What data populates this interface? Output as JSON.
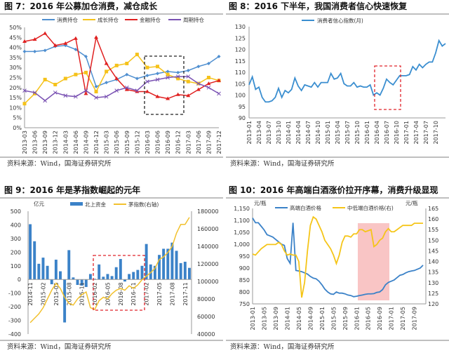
{
  "figures": [
    {
      "title": "图 7：2016 年公募加仓消费，减仓成长",
      "source": "资料来源：Wind，国海证券研究所"
    },
    {
      "title": "图 8：2016 下半年，我国消费者信心快速恢复",
      "source": "资料来源：Wind，国海证券研究所"
    },
    {
      "title": "图 9：2016 年是茅指数崛起的元年",
      "source": "资料来源：Wind，国海证券研究所",
      "unit_left": "亿元"
    },
    {
      "title": "图 10：2016 年高端白酒涨价拉开序幕，消费升级显现",
      "source": "资料来源：Wind，国海证券研究所",
      "unit_left": "元/瓶",
      "unit_right": "元/瓶"
    }
  ],
  "chart_data": [
    {
      "type": "line",
      "ylim": [
        0,
        50
      ],
      "yticks": [
        "0%",
        "5%",
        "10%",
        "15%",
        "20%",
        "25%",
        "30%",
        "35%",
        "40%",
        "45%",
        "50%"
      ],
      "legend": "top",
      "categories": [
        "2013-03",
        "2013-06",
        "2013-09",
        "2013-12",
        "2014-03",
        "2014-06",
        "2014-09",
        "2014-12",
        "2015-03",
        "2015-06",
        "2015-09",
        "2015-12",
        "2016-03",
        "2016-06",
        "2016-09",
        "2016-12",
        "2017-03",
        "2017-06",
        "2017-09",
        "2017-12"
      ],
      "series": [
        {
          "name": "消费持仓",
          "color": "#4f8fd0",
          "marker": "diamond",
          "values": [
            38,
            38,
            38.5,
            40.5,
            41,
            39,
            35.5,
            20.5,
            22.5,
            24,
            26.5,
            24.5,
            26,
            27,
            28,
            27.5,
            28.5,
            30.5,
            32,
            35.5
          ]
        },
        {
          "name": "成长持仓",
          "color": "#f5c21a",
          "marker": "square",
          "values": [
            12,
            17,
            24,
            21.5,
            24.5,
            26.5,
            27.5,
            18,
            28,
            31,
            32,
            36.5,
            30,
            30.5,
            26.5,
            24.5,
            23,
            22,
            25,
            23.5
          ]
        },
        {
          "name": "金融持仓",
          "color": "#e02020",
          "marker": "triangle",
          "values": [
            43,
            44,
            47,
            41,
            42,
            44.5,
            17,
            45,
            32,
            24.5,
            19,
            18,
            18,
            15.5,
            14.5,
            16.5,
            16,
            19,
            22,
            23.5
          ]
        },
        {
          "name": "周期持仓",
          "color": "#7a52b3",
          "marker": "x",
          "values": [
            18.5,
            17.5,
            13.5,
            17.5,
            16,
            15.5,
            18.5,
            15,
            15.5,
            18.5,
            20,
            18.5,
            23,
            24,
            25,
            25.5,
            25.5,
            22,
            20,
            17
          ]
        }
      ]
    },
    {
      "type": "line",
      "ylim": [
        90,
        130
      ],
      "yticks": [
        "90",
        "95",
        "100",
        "105",
        "110",
        "115",
        "120",
        "125",
        "130"
      ],
      "legend": "top",
      "xticks": [
        "2013-01",
        "2013-04",
        "2013-07",
        "2013-10",
        "2014-01",
        "2014-04",
        "2014-07",
        "2014-10",
        "2015-01",
        "2015-04",
        "2015-07",
        "2015-10",
        "2016-01",
        "2016-04",
        "2016-07",
        "2016-10",
        "2017-01",
        "2017-04",
        "2017-07",
        "2017-10"
      ],
      "series": [
        {
          "name": "消费者信心指数(月)",
          "color": "#3a8ed0",
          "values": [
            104.5,
            108,
            102.5,
            103.5,
            99,
            97,
            97,
            97.5,
            99,
            103,
            99,
            102,
            101,
            102.5,
            107.5,
            104,
            102,
            104.5,
            104,
            103.5,
            105.5,
            103.5,
            105.5,
            105.5,
            105.5,
            109.5,
            107,
            107.5,
            109.5,
            105,
            104,
            104,
            105.5,
            103.5,
            104,
            103.5,
            103.5,
            104.5,
            100,
            101,
            100,
            103,
            107,
            105.5,
            104.5,
            106.5,
            108.5,
            108.5,
            108.5,
            109,
            112.5,
            111,
            113.5,
            112,
            113.5,
            114.5,
            114.5,
            118.5,
            123.9,
            121.5,
            122.6
          ]
        }
      ]
    },
    {
      "type": "bar+line",
      "ylim": [
        -400,
        500
      ],
      "y2lim": [
        40000,
        180000
      ],
      "yticks": [
        "-400",
        "-300",
        "-200",
        "-100",
        "0",
        "100",
        "200",
        "300",
        "400",
        "500"
      ],
      "y2ticks": [
        "40000",
        "60000",
        "80000",
        "100000",
        "120000",
        "140000",
        "160000",
        "180000"
      ],
      "legend": "top",
      "xticks": [
        "2014-11",
        "2015-02",
        "2015-05",
        "2015-08",
        "2015-11",
        "2016-02",
        "2016-05",
        "2016-08",
        "2016-11",
        "2017-02",
        "2017-05",
        "2017-08",
        "2017-11"
      ],
      "series": [
        {
          "name": "北上资金",
          "color": "#3b82c8",
          "type": "bar",
          "values": [
            405,
            280,
            115,
            160,
            100,
            -35,
            145,
            60,
            -315,
            215,
            15,
            -40,
            -45,
            -55,
            40,
            5,
            110,
            20,
            40,
            25,
            90,
            150,
            -15,
            40,
            55,
            70,
            100,
            260,
            110,
            100,
            180,
            225,
            225,
            270,
            210,
            120,
            130,
            85
          ]
        },
        {
          "name": "茅指数(右轴)",
          "color": "#f2c12e",
          "type": "line",
          "values": [
            53000,
            58000,
            63000,
            70000,
            80000,
            90000,
            98000,
            92000,
            82000,
            75000,
            73000,
            80000,
            85000,
            88000,
            70000,
            68000,
            78000,
            82000,
            80000,
            86000,
            90000,
            92000,
            90000,
            95000,
            92000,
            96000,
            102000,
            106000,
            110000,
            115000,
            125000,
            128000,
            133000,
            140000,
            155000,
            165000,
            165000,
            173000
          ]
        }
      ]
    },
    {
      "type": "line",
      "ylim": [
        750,
        1150
      ],
      "y2lim": [
        120,
        165
      ],
      "yticks": [
        "750",
        "800",
        "850",
        "900",
        "950",
        "1,000",
        "1,050",
        "1,100",
        "1,150"
      ],
      "y2ticks": [
        "120",
        "125",
        "130",
        "135",
        "140",
        "145",
        "150",
        "155",
        "160",
        "165"
      ],
      "legend": "top",
      "xticks": [
        "2013-01",
        "2013-05",
        "2013-09",
        "2014-01",
        "2014-05",
        "2014-09",
        "2015-01",
        "2015-05",
        "2015-09",
        "2016-01",
        "2016-05",
        "2016-09",
        "2017-01",
        "2017-05",
        "2017-09"
      ],
      "series": [
        {
          "name": "高端白酒价格",
          "color": "#3b82c8",
          "axis": "left",
          "values": [
            1110,
            1090,
            1090,
            1075,
            1060,
            1040,
            1035,
            1030,
            1020,
            1010,
            1000,
            995,
            940,
            920,
            1090,
            890,
            888,
            885,
            880,
            875,
            865,
            858,
            855,
            845,
            830,
            812,
            800,
            792,
            790,
            800,
            795,
            795,
            792,
            787,
            785,
            780,
            782,
            785,
            787,
            790,
            792,
            792,
            793,
            798,
            800,
            810,
            830,
            840,
            845,
            850,
            860,
            870,
            873,
            880,
            885,
            888,
            890,
            895,
            900,
            912
          ]
        },
        {
          "name": "中低端白酒价格(右)",
          "color": "#f5c518",
          "axis": "right",
          "values": [
            143.5,
            143,
            144.5,
            146,
            147,
            148,
            148,
            148,
            148,
            149,
            148,
            145,
            143,
            143.5,
            143,
            143,
            140,
            123,
            130,
            145,
            157,
            161,
            160,
            157,
            154,
            150,
            148,
            146,
            143,
            139,
            143,
            149,
            152,
            152,
            151.5,
            153,
            153,
            155,
            155,
            154,
            154.5,
            155,
            147,
            148,
            150,
            151,
            154,
            155.5,
            154,
            154,
            155,
            156,
            157,
            157,
            157,
            157,
            158,
            158,
            158,
            158
          ]
        }
      ]
    }
  ]
}
